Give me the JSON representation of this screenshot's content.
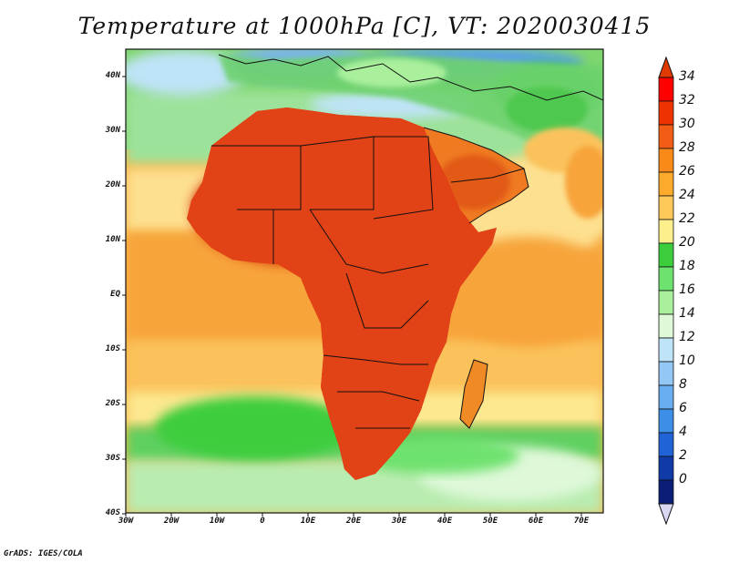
{
  "title": "Temperature at 1000hPa [C], VT: 2020030415",
  "credit": "GrADS: IGES/COLA",
  "map": {
    "lat_labels": [
      "40N",
      "30N",
      "20N",
      "10N",
      "EQ",
      "10S",
      "20S",
      "30S",
      "40S"
    ],
    "lon_labels": [
      "30W",
      "20W",
      "10W",
      "0",
      "10E",
      "20E",
      "30E",
      "40E",
      "50E",
      "60E",
      "70E"
    ]
  },
  "colorbar": {
    "labels": [
      "34",
      "32",
      "30",
      "28",
      "26",
      "24",
      "22",
      "20",
      "18",
      "16",
      "14",
      "12",
      "10",
      "8",
      "6",
      "4",
      "2",
      "0"
    ],
    "colors": [
      "#ff0000",
      "#ee3300",
      "#f25c14",
      "#f98a19",
      "#fbaa2c",
      "#fec85a",
      "#fdf08c",
      "#3ccd3c",
      "#6ee26e",
      "#a9ef9c",
      "#def8d8",
      "#bfe3f7",
      "#94c8f4",
      "#69aef0",
      "#3c8ee6",
      "#1f63d6",
      "#0f3aa8",
      "#0a1e78"
    ],
    "top_arrow_color": "#e03a00",
    "bottom_arrow_color": "#d8d8f4"
  },
  "colors": {
    "hot": "#d8260e",
    "warm": "#ee6a14",
    "ocean_warm": "#f7a43a",
    "ocean_mid": "#fdc66a",
    "ocean_cool": "#6ed85a",
    "cold": "#7ab4ec"
  }
}
